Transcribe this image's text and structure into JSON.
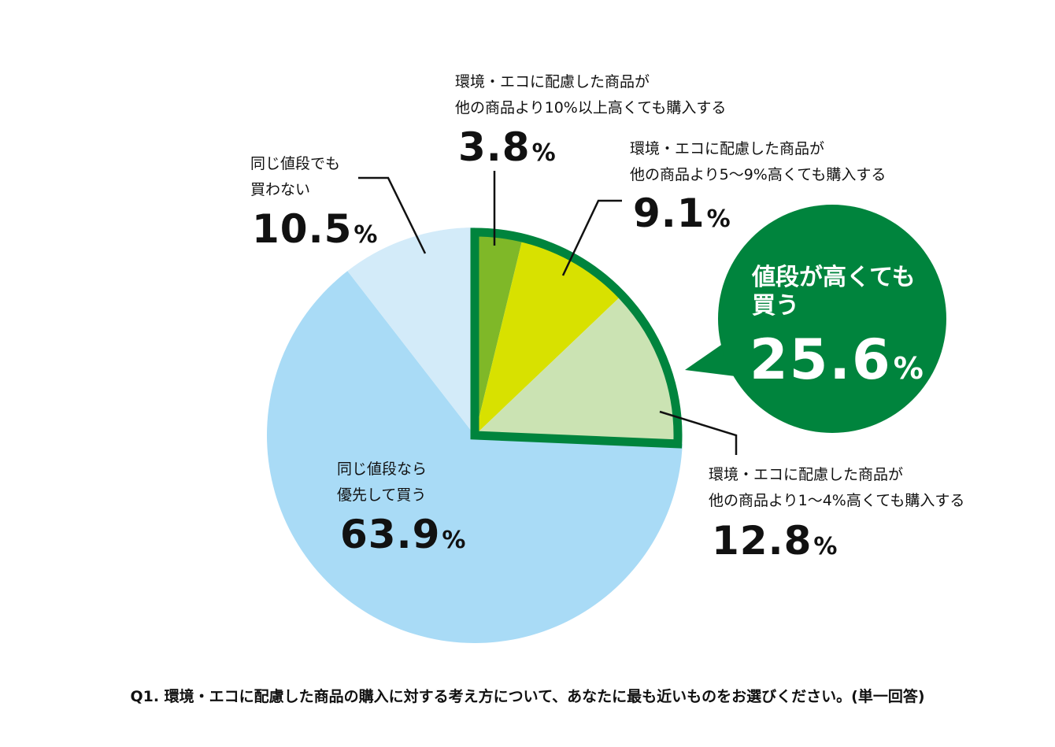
{
  "chart_data": {
    "type": "pie",
    "slices": [
      {
        "label": "環境・エコに配慮した商品が他の商品より10%以上高くても購入する",
        "value": 3.8,
        "color": "#7fb828"
      },
      {
        "label": "環境・エコに配慮した商品が他の商品より5〜9%高くても購入する",
        "value": 9.1,
        "color": "#d8e100"
      },
      {
        "label": "環境・エコに配慮した商品が他の商品より1〜4%高くても購入する",
        "value": 12.8,
        "color": "#cbe3b3"
      },
      {
        "label": "同じ値段なら優先して買う",
        "value": 63.9,
        "color": "#a9dbf6"
      },
      {
        "label": "同じ値段でも買わない",
        "value": 10.5,
        "color": "#d3ebf9"
      }
    ],
    "highlight": {
      "label": "値段が高くても買う",
      "value": 25.6,
      "color": "#00843d"
    },
    "title": "Q1. 環境・エコに配慮した商品の購入に対する考え方について、あなたに最も近いものをお選びください。(単一回答)"
  },
  "labels": {
    "s10": {
      "line1": "環境・エコに配慮した商品が",
      "line2": "他の商品より10%以上高くても購入する",
      "pct": "3.8"
    },
    "s59": {
      "line1": "環境・エコに配慮した商品が",
      "line2": "他の商品より5〜9%高くても購入する",
      "pct": "9.1"
    },
    "s14": {
      "line1": "環境・エコに配慮した商品が",
      "line2": "他の商品より1〜4%高くても購入する",
      "pct": "12.8"
    },
    "same_buy": {
      "line1": "同じ値段なら",
      "line2": "優先して買う",
      "pct": "63.9"
    },
    "no_buy": {
      "line1": "同じ値段でも",
      "line2": "買わない",
      "pct": "10.5"
    },
    "bubble": {
      "line1": "値段が高くても",
      "line2": "買う",
      "pct": "25.6"
    },
    "unit": "%"
  },
  "footnote": "Q1. 環境・エコに配慮した商品の購入に対する考え方について、あなたに最も近いものをお選びください。(単一回答)"
}
